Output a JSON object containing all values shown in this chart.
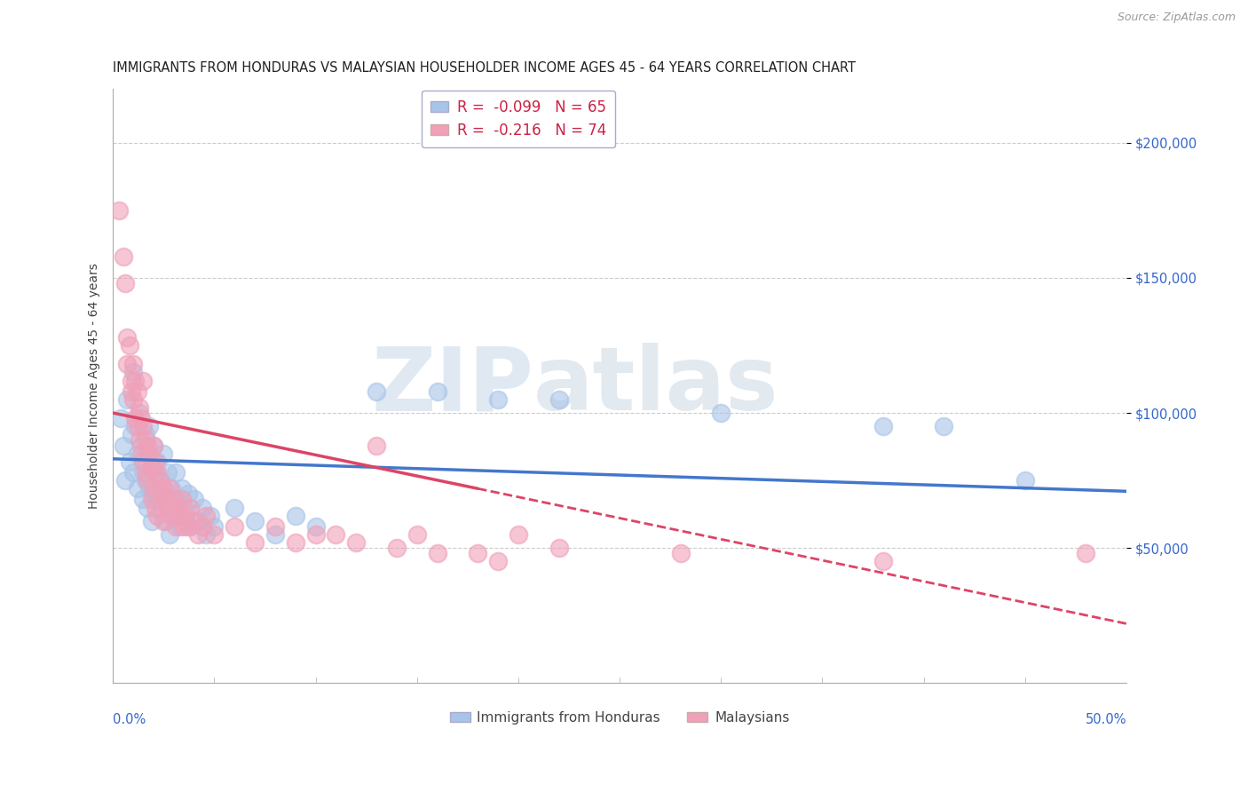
{
  "title": "IMMIGRANTS FROM HONDURAS VS MALAYSIAN HOUSEHOLDER INCOME AGES 45 - 64 YEARS CORRELATION CHART",
  "source": "Source: ZipAtlas.com",
  "ylabel": "Householder Income Ages 45 - 64 years",
  "xlim": [
    0.0,
    0.5
  ],
  "ylim": [
    0,
    220000
  ],
  "yticks": [
    50000,
    100000,
    150000,
    200000
  ],
  "ytick_labels": [
    "$50,000",
    "$100,000",
    "$150,000",
    "$200,000"
  ],
  "r_blue": -0.099,
  "n_blue": 65,
  "r_pink": -0.216,
  "n_pink": 74,
  "watermark_zip": "ZIP",
  "watermark_atlas": "atlas",
  "blue_color": "#a8c4e8",
  "pink_color": "#f0a0b8",
  "blue_line_color": "#4477cc",
  "pink_line_color": "#dd4466",
  "legend_blue_label": "Immigrants from Honduras",
  "legend_pink_label": "Malaysians",
  "blue_line_x0": 0.0,
  "blue_line_y0": 83000,
  "blue_line_x1": 0.5,
  "blue_line_y1": 71000,
  "pink_line_solid_x0": 0.0,
  "pink_line_solid_y0": 100000,
  "pink_line_solid_x1": 0.18,
  "pink_line_solid_y1": 72000,
  "pink_line_dash_x0": 0.18,
  "pink_line_dash_y0": 72000,
  "pink_line_dash_x1": 0.5,
  "pink_line_dash_y1": 22000,
  "blue_scatter": [
    [
      0.004,
      98000
    ],
    [
      0.005,
      88000
    ],
    [
      0.006,
      75000
    ],
    [
      0.007,
      105000
    ],
    [
      0.008,
      82000
    ],
    [
      0.009,
      92000
    ],
    [
      0.01,
      115000
    ],
    [
      0.01,
      78000
    ],
    [
      0.011,
      95000
    ],
    [
      0.012,
      85000
    ],
    [
      0.012,
      72000
    ],
    [
      0.013,
      100000
    ],
    [
      0.014,
      88000
    ],
    [
      0.015,
      78000
    ],
    [
      0.015,
      68000
    ],
    [
      0.016,
      92000
    ],
    [
      0.016,
      75000
    ],
    [
      0.017,
      85000
    ],
    [
      0.017,
      65000
    ],
    [
      0.018,
      95000
    ],
    [
      0.018,
      72000
    ],
    [
      0.019,
      80000
    ],
    [
      0.019,
      60000
    ],
    [
      0.02,
      88000
    ],
    [
      0.02,
      70000
    ],
    [
      0.021,
      78000
    ],
    [
      0.022,
      68000
    ],
    [
      0.022,
      82000
    ],
    [
      0.023,
      75000
    ],
    [
      0.024,
      65000
    ],
    [
      0.025,
      85000
    ],
    [
      0.025,
      72000
    ],
    [
      0.026,
      60000
    ],
    [
      0.027,
      78000
    ],
    [
      0.028,
      68000
    ],
    [
      0.028,
      55000
    ],
    [
      0.029,
      72000
    ],
    [
      0.03,
      62000
    ],
    [
      0.031,
      78000
    ],
    [
      0.032,
      68000
    ],
    [
      0.033,
      58000
    ],
    [
      0.034,
      72000
    ],
    [
      0.035,
      65000
    ],
    [
      0.036,
      60000
    ],
    [
      0.037,
      70000
    ],
    [
      0.038,
      58000
    ],
    [
      0.04,
      68000
    ],
    [
      0.042,
      60000
    ],
    [
      0.044,
      65000
    ],
    [
      0.046,
      55000
    ],
    [
      0.048,
      62000
    ],
    [
      0.05,
      58000
    ],
    [
      0.06,
      65000
    ],
    [
      0.07,
      60000
    ],
    [
      0.08,
      55000
    ],
    [
      0.09,
      62000
    ],
    [
      0.1,
      58000
    ],
    [
      0.13,
      108000
    ],
    [
      0.16,
      108000
    ],
    [
      0.19,
      105000
    ],
    [
      0.22,
      105000
    ],
    [
      0.3,
      100000
    ],
    [
      0.38,
      95000
    ],
    [
      0.41,
      95000
    ],
    [
      0.45,
      75000
    ]
  ],
  "pink_scatter": [
    [
      0.003,
      175000
    ],
    [
      0.005,
      158000
    ],
    [
      0.006,
      148000
    ],
    [
      0.007,
      128000
    ],
    [
      0.007,
      118000
    ],
    [
      0.008,
      125000
    ],
    [
      0.009,
      112000
    ],
    [
      0.009,
      108000
    ],
    [
      0.01,
      118000
    ],
    [
      0.01,
      105000
    ],
    [
      0.011,
      112000
    ],
    [
      0.011,
      98000
    ],
    [
      0.012,
      108000
    ],
    [
      0.012,
      95000
    ],
    [
      0.013,
      102000
    ],
    [
      0.013,
      90000
    ],
    [
      0.014,
      98000
    ],
    [
      0.014,
      85000
    ],
    [
      0.015,
      95000
    ],
    [
      0.015,
      82000
    ],
    [
      0.015,
      112000
    ],
    [
      0.016,
      90000
    ],
    [
      0.016,
      78000
    ],
    [
      0.017,
      88000
    ],
    [
      0.017,
      75000
    ],
    [
      0.018,
      85000
    ],
    [
      0.019,
      80000
    ],
    [
      0.019,
      68000
    ],
    [
      0.02,
      88000
    ],
    [
      0.02,
      72000
    ],
    [
      0.021,
      82000
    ],
    [
      0.021,
      65000
    ],
    [
      0.022,
      78000
    ],
    [
      0.022,
      62000
    ],
    [
      0.023,
      75000
    ],
    [
      0.024,
      70000
    ],
    [
      0.025,
      72000
    ],
    [
      0.025,
      60000
    ],
    [
      0.026,
      68000
    ],
    [
      0.027,
      65000
    ],
    [
      0.028,
      72000
    ],
    [
      0.029,
      62000
    ],
    [
      0.03,
      68000
    ],
    [
      0.031,
      58000
    ],
    [
      0.032,
      65000
    ],
    [
      0.033,
      62000
    ],
    [
      0.034,
      68000
    ],
    [
      0.035,
      58000
    ],
    [
      0.036,
      62000
    ],
    [
      0.037,
      58000
    ],
    [
      0.038,
      65000
    ],
    [
      0.04,
      60000
    ],
    [
      0.042,
      55000
    ],
    [
      0.044,
      58000
    ],
    [
      0.046,
      62000
    ],
    [
      0.05,
      55000
    ],
    [
      0.06,
      58000
    ],
    [
      0.07,
      52000
    ],
    [
      0.08,
      58000
    ],
    [
      0.09,
      52000
    ],
    [
      0.1,
      55000
    ],
    [
      0.11,
      55000
    ],
    [
      0.12,
      52000
    ],
    [
      0.13,
      88000
    ],
    [
      0.14,
      50000
    ],
    [
      0.15,
      55000
    ],
    [
      0.16,
      48000
    ],
    [
      0.18,
      48000
    ],
    [
      0.19,
      45000
    ],
    [
      0.2,
      55000
    ],
    [
      0.22,
      50000
    ],
    [
      0.28,
      48000
    ],
    [
      0.38,
      45000
    ],
    [
      0.48,
      48000
    ]
  ],
  "background_color": "#ffffff",
  "grid_color": "#cccccc",
  "title_fontsize": 10.5,
  "axis_label_fontsize": 10,
  "tick_fontsize": 10.5
}
